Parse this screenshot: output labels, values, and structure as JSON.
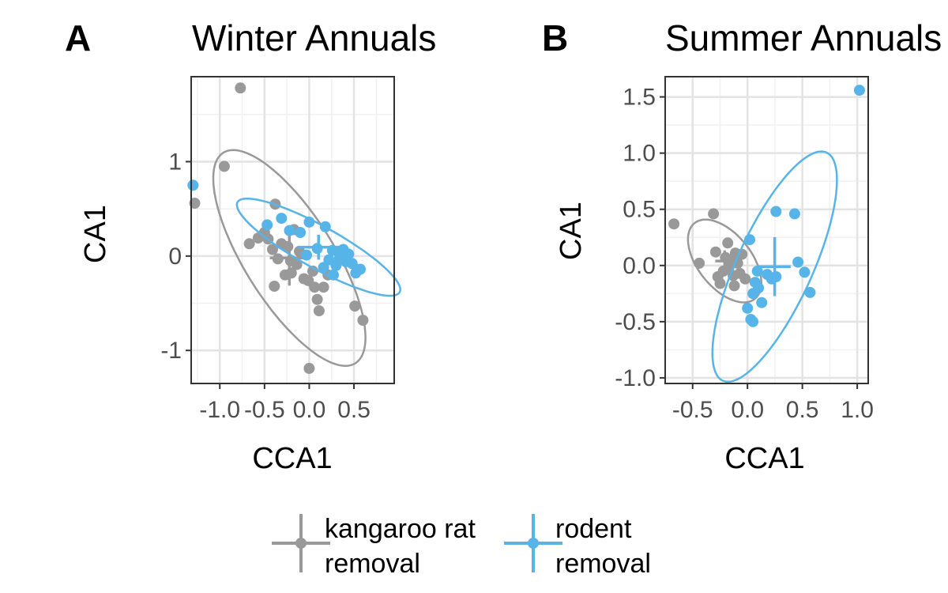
{
  "chart_data": [
    {
      "type": "scatter",
      "panel_label": "A",
      "title": "Winter Annuals",
      "xlabel": "CCA1",
      "ylabel": "CA1",
      "xlim": [
        -1.32,
        0.95
      ],
      "ylim": [
        -1.35,
        1.9
      ],
      "xticks": [
        -1.0,
        -0.5,
        0.0,
        0.5
      ],
      "xtick_labels": [
        "-1.0",
        "-0.5",
        "0.0",
        "0.5"
      ],
      "yticks": [
        -1,
        0,
        1
      ],
      "ytick_labels": [
        "-1",
        "0",
        "1"
      ],
      "grid": true,
      "series": [
        {
          "name": "kangaroo rat removal",
          "color": "#999999",
          "points": [
            [
              -1.28,
              0.56
            ],
            [
              -0.95,
              0.95
            ],
            [
              -0.77,
              1.78
            ],
            [
              -0.67,
              0.13
            ],
            [
              -0.57,
              0.19
            ],
            [
              -0.5,
              0.25
            ],
            [
              -0.46,
              0.18
            ],
            [
              -0.41,
              0.07
            ],
            [
              -0.38,
              0.55
            ],
            [
              -0.35,
              -0.03
            ],
            [
              -0.31,
              0.13
            ],
            [
              -0.27,
              -0.2
            ],
            [
              -0.24,
              0.1
            ],
            [
              -0.21,
              -0.05
            ],
            [
              -0.17,
              0.28
            ],
            [
              -0.14,
              -0.09
            ],
            [
              -0.11,
              0.05
            ],
            [
              -0.06,
              -0.24
            ],
            [
              -0.01,
              -0.26
            ],
            [
              0.04,
              -0.16
            ],
            [
              0.06,
              -0.33
            ],
            [
              0.09,
              -0.46
            ],
            [
              0.11,
              -0.58
            ],
            [
              0.16,
              -0.33
            ],
            [
              0.21,
              -0.2
            ],
            [
              0.51,
              -0.53
            ],
            [
              0.6,
              -0.68
            ],
            [
              -0.39,
              -0.32
            ],
            [
              0.0,
              -1.19
            ],
            [
              -0.2,
              -0.18
            ]
          ]
        },
        {
          "name": "rodent removal",
          "color": "#56b4e9",
          "points": [
            [
              -1.3,
              0.75
            ],
            [
              -0.47,
              0.33
            ],
            [
              -0.31,
              0.4
            ],
            [
              -0.22,
              0.27
            ],
            [
              -0.1,
              0.25
            ],
            [
              -0.03,
              0.01
            ],
            [
              0.0,
              0.36
            ],
            [
              0.09,
              0.08
            ],
            [
              0.18,
              0.31
            ],
            [
              0.22,
              -0.04
            ],
            [
              0.26,
              0.06
            ],
            [
              0.3,
              -0.1
            ],
            [
              0.34,
              -0.02
            ],
            [
              0.38,
              0.07
            ],
            [
              0.41,
              -0.06
            ],
            [
              0.44,
              0.02
            ],
            [
              0.48,
              -0.08
            ],
            [
              0.52,
              -0.18
            ],
            [
              0.57,
              -0.14
            ],
            [
              0.16,
              -0.12
            ],
            [
              0.27,
              -0.2
            ]
          ]
        }
      ]
    },
    {
      "type": "scatter",
      "panel_label": "B",
      "title": "Summer Annuals",
      "xlabel": "CCA1",
      "ylabel": "CA1",
      "xlim": [
        -0.75,
        1.1
      ],
      "ylim": [
        -1.05,
        1.68
      ],
      "xticks": [
        -0.5,
        0.0,
        0.5,
        1.0
      ],
      "xtick_labels": [
        "-0.5",
        "0.0",
        "0.5",
        "1.0"
      ],
      "yticks": [
        -1.0,
        -0.5,
        0.0,
        0.5,
        1.0,
        1.5
      ],
      "ytick_labels": [
        "-1.0",
        "-0.5",
        "0.0",
        "0.5",
        "1.0",
        "1.5"
      ],
      "grid": true,
      "series": [
        {
          "name": "kangaroo rat removal",
          "color": "#999999",
          "points": [
            [
              -0.67,
              0.37
            ],
            [
              -0.44,
              0.02
            ],
            [
              -0.31,
              0.46
            ],
            [
              -0.29,
              0.12
            ],
            [
              -0.27,
              -0.1
            ],
            [
              -0.25,
              -0.16
            ],
            [
              -0.22,
              -0.05
            ],
            [
              -0.2,
              0.07
            ],
            [
              -0.17,
              -0.02
            ],
            [
              -0.15,
              0.04
            ],
            [
              -0.13,
              -0.09
            ],
            [
              -0.11,
              0.11
            ],
            [
              -0.09,
              0.02
            ],
            [
              -0.07,
              -0.07
            ],
            [
              -0.05,
              0.1
            ],
            [
              -0.18,
              0.2
            ],
            [
              -0.12,
              -0.18
            ],
            [
              -0.02,
              -0.12
            ]
          ]
        },
        {
          "name": "rodent removal",
          "color": "#56b4e9",
          "points": [
            [
              0.02,
              0.23
            ],
            [
              0.0,
              -0.38
            ],
            [
              0.03,
              -0.48
            ],
            [
              0.05,
              -0.25
            ],
            [
              0.07,
              -0.15
            ],
            [
              0.1,
              -0.2
            ],
            [
              0.13,
              -0.33
            ],
            [
              0.18,
              -0.08
            ],
            [
              0.22,
              -0.12
            ],
            [
              0.26,
              -0.1
            ],
            [
              0.26,
              0.48
            ],
            [
              0.43,
              0.46
            ],
            [
              0.46,
              0.03
            ],
            [
              0.52,
              -0.06
            ],
            [
              0.57,
              -0.24
            ],
            [
              1.02,
              1.56
            ],
            [
              0.09,
              -0.05
            ],
            [
              0.05,
              -0.5
            ]
          ]
        }
      ]
    }
  ],
  "legend": {
    "items": [
      {
        "line1": "kangaroo rat",
        "line2": "removal",
        "color": "#999999"
      },
      {
        "line1": "rodent",
        "line2": "removal",
        "color": "#56b4e9"
      }
    ]
  }
}
